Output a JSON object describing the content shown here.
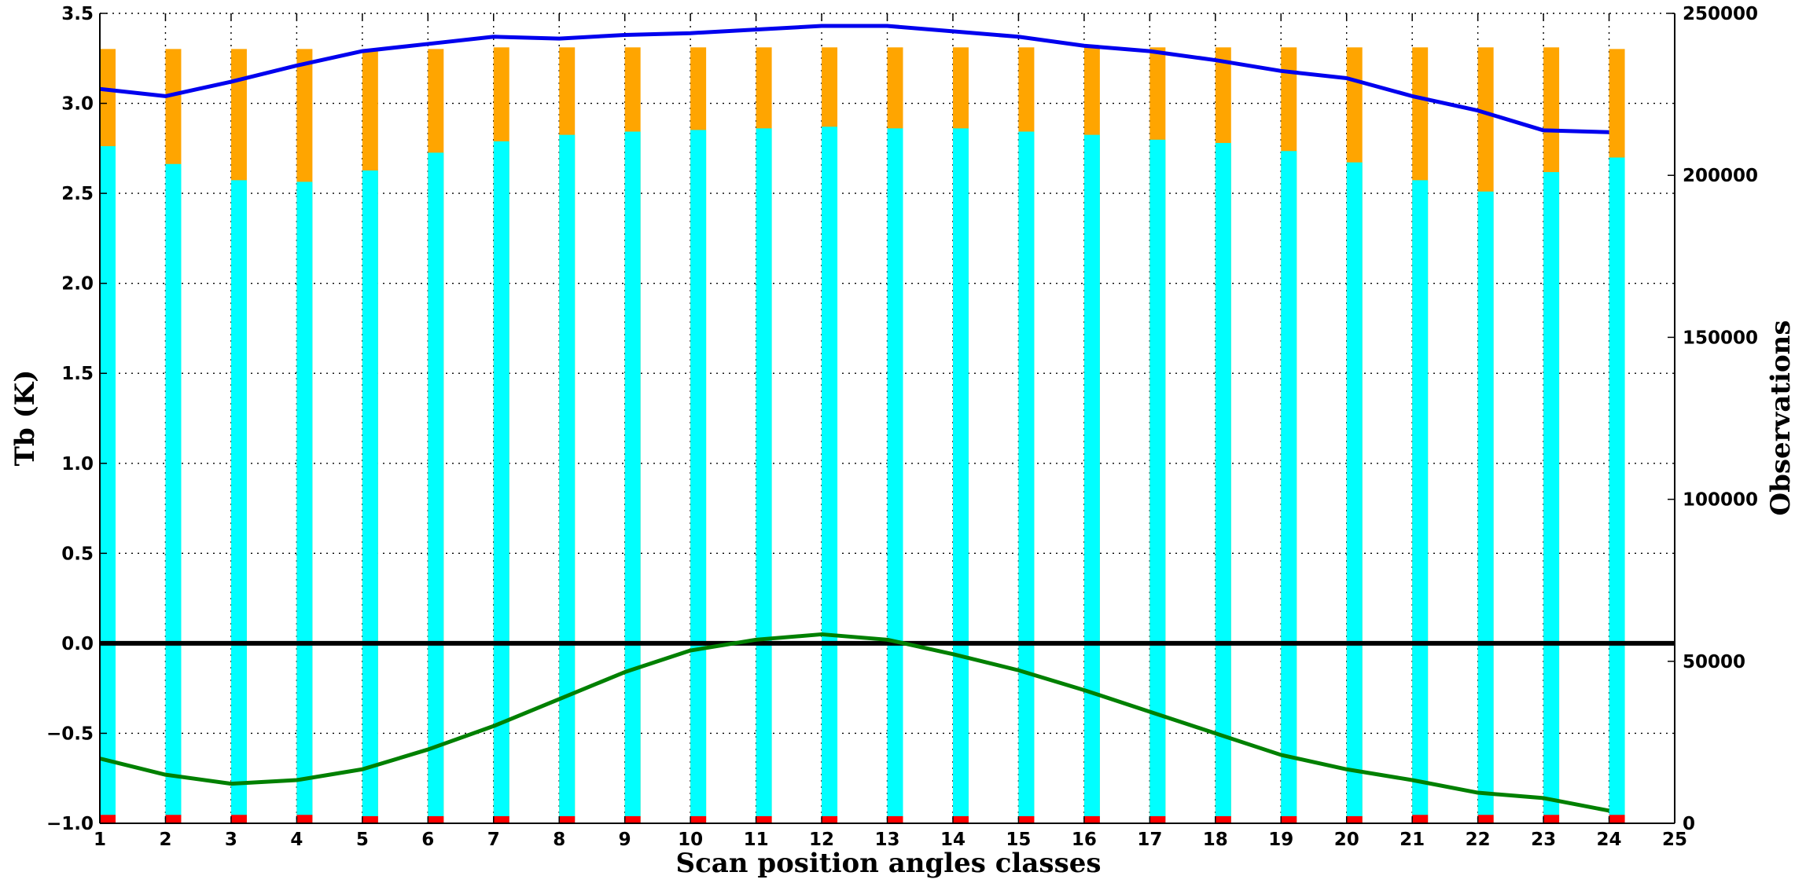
{
  "chart_data": {
    "type": "bar",
    "xlabel": "Scan position angles classes",
    "ylabel": "Tb (K)",
    "y2label": "Observations",
    "xlim": [
      1,
      25
    ],
    "ylim": [
      -1.0,
      3.5
    ],
    "y2lim": [
      0,
      250000
    ],
    "grid": true,
    "x_ticks": [
      "1",
      "2",
      "3",
      "4",
      "5",
      "6",
      "7",
      "8",
      "9",
      "10",
      "11",
      "12",
      "13",
      "14",
      "15",
      "16",
      "17",
      "18",
      "19",
      "20",
      "21",
      "22",
      "23",
      "24",
      "25"
    ],
    "y_ticks": [
      "−1.0",
      "−0.5",
      "0.0",
      "0.5",
      "1.0",
      "1.5",
      "2.0",
      "2.5",
      "3.0",
      "3.5"
    ],
    "y2_ticks": [
      "0",
      "50000",
      "100000",
      "150000",
      "200000",
      "250000"
    ],
    "bar_colors": {
      "observations_total": "#ffa500",
      "observations_used": "#00ffff",
      "observations_rejected": "#ff0000"
    },
    "line_colors": {
      "mean_departure": "#0000ee",
      "std_departure": "#008000",
      "zero_line": "#000000"
    },
    "categories": [
      1,
      2,
      3,
      4,
      5,
      6,
      7,
      8,
      9,
      10,
      11,
      12,
      13,
      14,
      15,
      16,
      17,
      18,
      19,
      20,
      21,
      22,
      23,
      24
    ],
    "bar_series": [
      {
        "axis": "y2",
        "values": [
          239000,
          239000,
          239000,
          239000,
          239000,
          239000,
          239500,
          239500,
          239500,
          239500,
          239500,
          239500,
          239500,
          239500,
          239500,
          239500,
          239500,
          239500,
          239500,
          239500,
          239500,
          239500,
          239500,
          239000
        ]
      },
      {
        "axis": "y2",
        "values": [
          209000,
          203500,
          198500,
          198000,
          201500,
          207000,
          210500,
          212500,
          213500,
          214000,
          214500,
          215000,
          214500,
          214500,
          213500,
          212500,
          211000,
          210000,
          207500,
          204000,
          198500,
          195000,
          201000,
          205500
        ]
      },
      {
        "axis": "y2",
        "values": [
          2600,
          2600,
          2600,
          2600,
          2200,
          2200,
          2200,
          2200,
          2200,
          2200,
          2200,
          2200,
          2200,
          2200,
          2200,
          2200,
          2200,
          2200,
          2200,
          2200,
          2600,
          2600,
          2600,
          2600
        ]
      }
    ],
    "line_series": [
      {
        "axis": "y",
        "x": [
          1,
          2,
          3,
          4,
          5,
          6,
          7,
          8,
          9,
          10,
          11,
          12,
          13,
          14,
          15,
          16,
          17,
          18,
          19,
          20,
          21,
          22,
          23,
          24
        ],
        "values": [
          3.08,
          3.04,
          3.12,
          3.21,
          3.29,
          3.33,
          3.37,
          3.36,
          3.38,
          3.39,
          3.41,
          3.43,
          3.43,
          3.4,
          3.37,
          3.32,
          3.29,
          3.24,
          3.18,
          3.14,
          3.04,
          2.96,
          2.85,
          2.84
        ]
      },
      {
        "axis": "y",
        "x": [
          1,
          2,
          3,
          4,
          5,
          6,
          7,
          8,
          9,
          10,
          11,
          12,
          13,
          14,
          15,
          16,
          17,
          18,
          19,
          20,
          21,
          22,
          23,
          24
        ],
        "values": [
          -0.64,
          -0.73,
          -0.78,
          -0.76,
          -0.7,
          -0.59,
          -0.46,
          -0.31,
          -0.16,
          -0.04,
          0.02,
          0.05,
          0.02,
          -0.06,
          -0.15,
          -0.26,
          -0.38,
          -0.5,
          -0.62,
          -0.7,
          -0.76,
          -0.83,
          -0.86,
          -0.93
        ]
      }
    ]
  }
}
